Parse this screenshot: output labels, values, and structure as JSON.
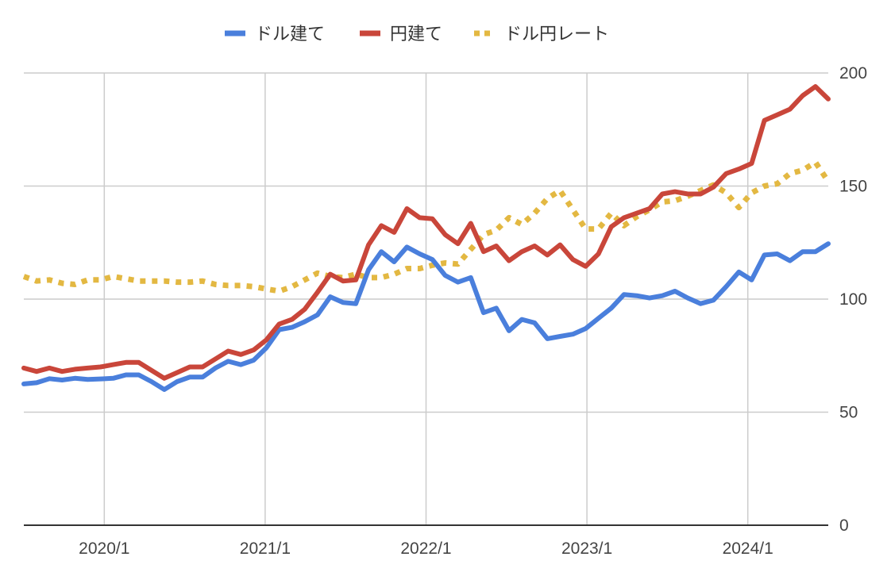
{
  "chart_data": {
    "type": "line",
    "title": "",
    "xlabel": "",
    "ylabel": "",
    "ylim": [
      0,
      200
    ],
    "y_ticks": [
      0,
      50,
      100,
      150,
      200
    ],
    "y_axis_side": "right",
    "x_ticks": [
      "2020/1",
      "2021/1",
      "2022/1",
      "2023/1",
      "2024/1"
    ],
    "grid": true,
    "legend_position": "top-center",
    "x_start": "2019/07",
    "x_end": "2024/07",
    "series": [
      {
        "name": "ドル建て",
        "color": "#4a7fdc",
        "style": "solid",
        "values": [
          62.5,
          63.0,
          64.8,
          64.2,
          65.0,
          64.5,
          64.7,
          65.0,
          66.5,
          66.5,
          63.5,
          60.0,
          63.5,
          65.5,
          65.5,
          69.5,
          72.5,
          71.0,
          73.0,
          78.5,
          86.5,
          87.5,
          90.0,
          93.0,
          101.0,
          98.5,
          98.0,
          113.0,
          121.0,
          116.5,
          123.0,
          120.0,
          117.5,
          110.5,
          107.5,
          109.5,
          94.0,
          96.0,
          86.0,
          91.0,
          89.5,
          82.5,
          83.5,
          84.5,
          87.0,
          91.5,
          96.0,
          102.0,
          101.5,
          100.5,
          101.5,
          103.5,
          100.5,
          98.0,
          99.5,
          105.5,
          112.0,
          108.5,
          119.5,
          120.0,
          117.0,
          121.0,
          121.0,
          124.5
        ]
      },
      {
        "name": "円建て",
        "color": "#c9463a",
        "style": "solid",
        "values": [
          69.5,
          68.0,
          69.5,
          68.0,
          69.0,
          69.5,
          70.0,
          71.0,
          72.0,
          72.0,
          68.5,
          65.0,
          67.5,
          70.0,
          70.0,
          73.5,
          77.0,
          75.5,
          77.5,
          82.0,
          89.0,
          91.0,
          95.5,
          103.0,
          111.0,
          108.0,
          108.5,
          124.0,
          132.5,
          129.5,
          140.0,
          136.0,
          135.5,
          128.5,
          124.5,
          133.5,
          121.0,
          123.5,
          117.0,
          121.0,
          123.5,
          119.5,
          124.0,
          117.5,
          114.5,
          120.0,
          132.0,
          136.0,
          138.0,
          140.0,
          146.5,
          147.5,
          146.5,
          146.5,
          149.5,
          155.5,
          157.5,
          160.0,
          179.0,
          181.5,
          184.0,
          190.0,
          194.0,
          188.5
        ]
      },
      {
        "name": "ドル円レート",
        "color": "#e3b842",
        "style": "dotted",
        "values": [
          110.0,
          108.0,
          108.5,
          107.0,
          106.5,
          108.5,
          108.5,
          110.0,
          109.0,
          108.0,
          108.0,
          108.0,
          107.5,
          107.5,
          108.0,
          106.5,
          106.0,
          106.0,
          105.5,
          104.5,
          103.5,
          105.5,
          108.5,
          111.5,
          110.0,
          109.5,
          111.0,
          109.5,
          109.5,
          111.0,
          113.5,
          113.5,
          115.0,
          116.0,
          115.5,
          122.0,
          128.5,
          130.5,
          136.0,
          133.0,
          138.0,
          144.5,
          148.0,
          139.5,
          131.0,
          131.0,
          138.0,
          132.5,
          136.5,
          139.5,
          143.0,
          143.5,
          145.5,
          148.0,
          150.5,
          147.0,
          140.5,
          147.0,
          150.0,
          151.0,
          155.5,
          157.0,
          160.5,
          152.0
        ]
      }
    ]
  }
}
